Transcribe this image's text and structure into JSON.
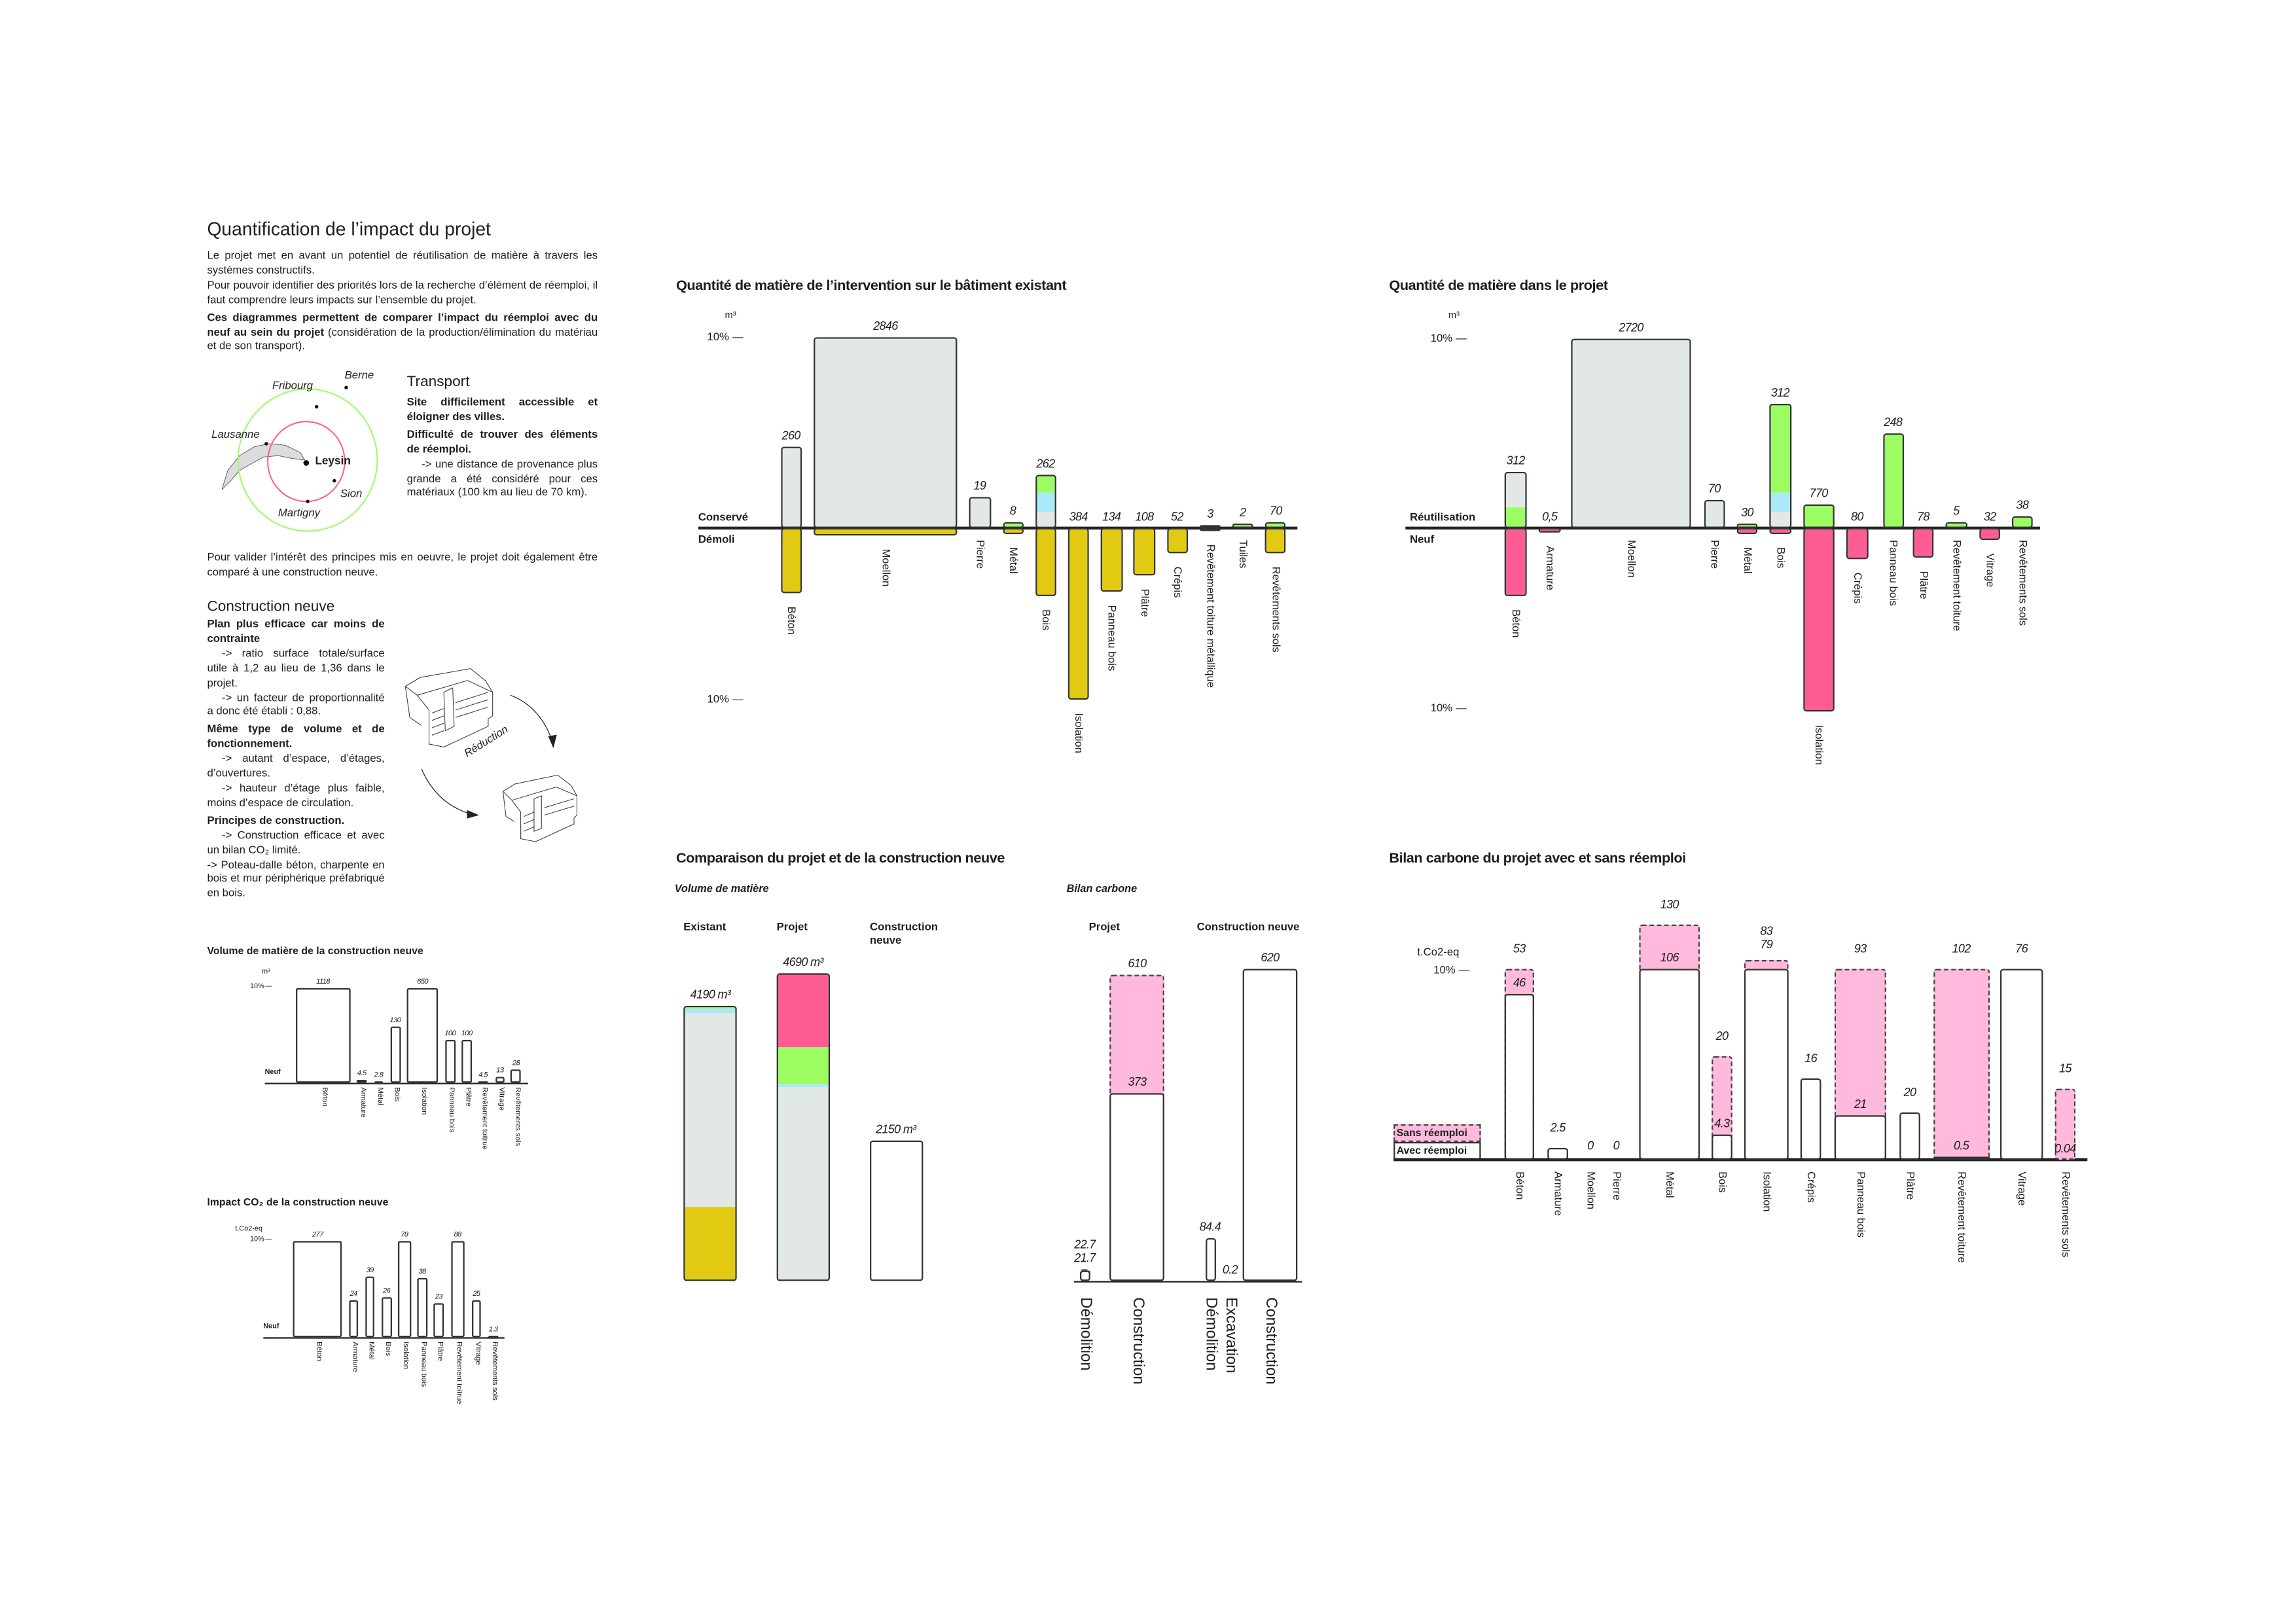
{
  "intro": {
    "title": "Quantification de l’impact du projet",
    "p1": "Le projet met en avant un potentiel de réutilisation de matière à travers les systèmes constructifs.",
    "p2": "Pour pouvoir identifier des priorités lors de la recherche d’élément de réemploi, il faut comprendre leurs impacts sur l’ensemble du projet.",
    "p3_bold": "Ces diagrammes permettent de comparer l’impact du réemploi avec du neuf au sein du projet",
    "p3_rest": " (considération de la production/élimination du matériau et de son transport)."
  },
  "map": {
    "cities": [
      "Berne",
      "Fribourg",
      "Lausanne",
      "Sion",
      "Martigny"
    ],
    "center": "Leysin"
  },
  "transport": {
    "title": "Transport",
    "b1": "Site difficilement accessible et éloigner des villes.",
    "b2": "Difficulté de trouver des éléments de réemploi.",
    "t1": "-> une distance de provenance plus grande a été considéré pour ces matériaux (100 km au lieu de 70 km)."
  },
  "validate": "Pour valider l’intérêt des principes mis en oeuvre, le projet doit également être comparé à une construction neuve.",
  "new_construction": {
    "title": "Construction neuve",
    "b1": "Plan plus efficace car moins de contrainte",
    "t1": "-> ratio surface totale/surface utile à 1,2 au lieu de 1,36 dans le projet.",
    "t2": "-> un facteur de proportionnalité a donc été établi : 0,88.",
    "b2": "Même type de volume et de fonctionnement.",
    "t3": "-> autant d’espace, d’étages, d’ouvertures.",
    "t4": "-> hauteur d’étage plus faible, moins d’espace de circulation.",
    "b3": "Principes de construction.",
    "t5": "-> Construction efficace et avec un bilan CO₂ limité.",
    "t6": "-> Poteau-dalle béton, charpente en bois et mur périphérique préfabriqué en bois.",
    "illustration_label": "Réduction"
  },
  "colors": {
    "gray": "#e1e8e6",
    "yellow": "#e2ca12",
    "green": "#9bfd62",
    "blue": "#a9e9f9",
    "pink": "#ff5c95",
    "lightpink": "#ffb9dd",
    "white": "#ffffff",
    "ring_outer": "#9bfd62",
    "ring_inner": "#ff5c95"
  },
  "chart_data": [
    {
      "type": "bar",
      "title": "Volume de matière de la construction neuve",
      "unit": "m³",
      "ytick": "10%",
      "baseline_label": "Neuf",
      "bars": [
        {
          "category": "Béton",
          "value": "1118",
          "pct": 10
        },
        {
          "category": "Armature",
          "value": "4.5",
          "pct": 0.3
        },
        {
          "category": "Métal",
          "value": "2.8",
          "pct": 0.17
        },
        {
          "category": "Bois",
          "value": "130",
          "pct": 6.0
        },
        {
          "category": "Isolation",
          "value": "650",
          "pct": 10
        },
        {
          "category": "Panneau bois",
          "value": "100",
          "pct": 4.6
        },
        {
          "category": "Plâtre",
          "value": "100",
          "pct": 4.6
        },
        {
          "category": "Revêtement toitrue",
          "value": "4.5",
          "pct": 0.27
        },
        {
          "category": "Vitrage",
          "value": "13",
          "pct": 0.64
        },
        {
          "category": "Revêtements sols",
          "value": "28",
          "pct": 1.4
        }
      ]
    },
    {
      "type": "bar",
      "title": "Impact CO₂ de la construction neuve",
      "unit": "t.Co2-eq",
      "ytick": "10%",
      "baseline_label": "Neuf",
      "bars": [
        {
          "category": "Béton",
          "value": "277",
          "pct": 10
        },
        {
          "category": "Armature",
          "value": "24",
          "pct": 3.9
        },
        {
          "category": "Métal",
          "value": "39",
          "pct": 6.4
        },
        {
          "category": "Bois",
          "value": "26",
          "pct": 4.2
        },
        {
          "category": "Isolation",
          "value": "78",
          "pct": 10
        },
        {
          "category": "Panneau bois",
          "value": "38",
          "pct": 6.2
        },
        {
          "category": "Plâtre",
          "value": "23",
          "pct": 3.6
        },
        {
          "category": "Revêtement toitrue",
          "value": "88",
          "pct": 10
        },
        {
          "category": "Vitrage",
          "value": "25",
          "pct": 3.9
        },
        {
          "category": "Revêtements sols",
          "value": "1.3",
          "pct": 0.2
        }
      ]
    },
    {
      "type": "bar",
      "title": "Quantité de matière de l’intervention sur le bâtiment existant",
      "unit": "m³",
      "ytick": "10%",
      "up_label": "Conservé",
      "down_label": "Démoli",
      "bars": [
        {
          "category": "Béton",
          "value": "260",
          "up": [
            [
              "gray",
              4.3
            ]
          ],
          "down": [
            [
              "yellow",
              3.8
            ]
          ]
        },
        {
          "category": "Moellon",
          "value": "2846",
          "up": [
            [
              "gray",
              10
            ]
          ],
          "down": [
            [
              "yellow",
              0.4
            ]
          ]
        },
        {
          "category": "Pierre",
          "value": "19",
          "up": [
            [
              "gray",
              1.6
            ]
          ],
          "down": []
        },
        {
          "category": "Métal",
          "value": "8",
          "up": [
            [
              "green",
              0.3
            ]
          ],
          "down": [
            [
              "yellow",
              0.35
            ]
          ]
        },
        {
          "category": "Bois",
          "value": "262",
          "up": [
            [
              "gray",
              0.8
            ],
            [
              "blue",
              1.0
            ],
            [
              "green",
              1.0
            ]
          ],
          "down": [
            [
              "yellow",
              4.0
            ]
          ]
        },
        {
          "category": "Isolation",
          "value": "384",
          "up": [],
          "down": [
            [
              "yellow",
              10
            ]
          ]
        },
        {
          "category": "Panneau bois",
          "value": "134",
          "up": [],
          "down": [
            [
              "yellow",
              3.7
            ]
          ]
        },
        {
          "category": "Plâtre",
          "value": "108",
          "up": [],
          "down": [
            [
              "yellow",
              2.8
            ]
          ]
        },
        {
          "category": "Crépis",
          "value": "52",
          "up": [],
          "down": [
            [
              "yellow",
              1.45
            ]
          ]
        },
        {
          "category": "Revêtement toiture métallique",
          "value": "3",
          "up": [
            [
              "green",
              0.13
            ]
          ],
          "down": [
            [
              "yellow",
              0.15
            ]
          ]
        },
        {
          "category": "Tuiles",
          "value": "2",
          "up": [
            [
              "green",
              0.23
            ]
          ],
          "down": []
        },
        {
          "category": "Revêtements sols",
          "value": "70",
          "up": [
            [
              "green",
              0.3
            ]
          ],
          "down": [
            [
              "yellow",
              1.45
            ]
          ]
        }
      ]
    },
    {
      "type": "bar",
      "title": "Quantité de matière dans le projet",
      "unit": "m³",
      "ytick": "10%",
      "up_label": "Réutilisation",
      "down_label": "Neuf",
      "bars": [
        {
          "category": "Béton",
          "value": "312",
          "up": [
            [
              "green",
              1.0
            ],
            [
              "gray",
              2.0
            ]
          ],
          "down": [
            [
              "pink",
              3.7
            ]
          ]
        },
        {
          "category": "Armature",
          "value": "0,5",
          "up": [],
          "down": [
            [
              "pink",
              0.27
            ]
          ]
        },
        {
          "category": "Moellon",
          "value": "2720",
          "up": [
            [
              "gray",
              10
            ]
          ],
          "down": []
        },
        {
          "category": "Pierre",
          "value": "70",
          "up": [
            [
              "gray",
              1.5
            ]
          ],
          "down": []
        },
        {
          "category": "Métal",
          "value": "30",
          "up": [
            [
              "green",
              0.26
            ]
          ],
          "down": [
            [
              "pink",
              0.34
            ]
          ]
        },
        {
          "category": "Bois",
          "value": "312",
          "up": [
            [
              "gray",
              0.8
            ],
            [
              "blue",
              1.0
            ],
            [
              "green",
              4.8
            ]
          ],
          "down": [
            [
              "pink",
              0.34
            ]
          ]
        },
        {
          "category": "Isolation",
          "value": "770",
          "up": [
            [
              "green",
              1.28
            ]
          ],
          "down": [
            [
              "pink",
              10
            ]
          ]
        },
        {
          "category": "Crépis",
          "value": "80",
          "up": [],
          "down": [
            [
              "pink",
              1.7
            ]
          ]
        },
        {
          "category": "Panneau bois",
          "value": "248",
          "up": [
            [
              "green",
              5.0
            ]
          ],
          "down": []
        },
        {
          "category": "Plâtre",
          "value": "78",
          "up": [],
          "down": [
            [
              "pink",
              1.6
            ]
          ]
        },
        {
          "category": "Revêtement toiture",
          "value": "5",
          "up": [
            [
              "green",
              0.28
            ]
          ],
          "down": []
        },
        {
          "category": "Vitrage",
          "value": "32",
          "up": [],
          "down": [
            [
              "pink",
              0.65
            ]
          ]
        },
        {
          "category": "Revêtements sols",
          "value": "38",
          "up": [
            [
              "green",
              0.64
            ]
          ],
          "down": []
        }
      ]
    },
    {
      "type": "bar",
      "title": "Comparaison du projet et de la construction neuve",
      "subtitle": "Volume de matière",
      "unit": "m³",
      "columns": [
        {
          "header": "Existant",
          "value": "4190 m³",
          "segments": [
            [
              "yellow",
              1105
            ],
            [
              "gray",
              2960
            ],
            [
              "blue",
              66
            ],
            [
              "green",
              60
            ]
          ]
        },
        {
          "header": "Projet",
          "value": "4690 m³",
          "segments": [
            [
              "gray",
              2929
            ],
            [
              "blue",
              44
            ],
            [
              "green",
              572
            ],
            [
              "pink",
              1145
            ]
          ]
        },
        {
          "header": "Construction neuve",
          "value": "2150 m³",
          "segments": [
            [
              "white",
              2150
            ]
          ]
        }
      ]
    },
    {
      "type": "bar",
      "subtitle": "Bilan carbone",
      "unit": "t.Co2-eq",
      "groups": [
        "Projet",
        "Construction neuve"
      ],
      "bars": [
        {
          "category": "Démolition",
          "avec": 21.7,
          "sans": 22.7,
          "labels": [
            "22.7",
            "21.7"
          ]
        },
        {
          "category": "Construction",
          "avec": 373,
          "sans": 610,
          "labels": [
            "610"
          ],
          "inner": "373"
        },
        {
          "category": "Démolition",
          "avec": 84.4,
          "sans": null,
          "labels": [
            "84.4"
          ]
        },
        {
          "category": "Excavation",
          "avec": 0.2,
          "sans": null,
          "labels": [
            "0.2"
          ]
        },
        {
          "category": "Construction",
          "avec": 620,
          "sans": null,
          "labels": [
            "620"
          ]
        }
      ]
    },
    {
      "type": "bar",
      "title": "Bilan carbone du projet avec et sans réemploi",
      "unit": "t.Co2-eq",
      "ytick": "10%",
      "legend": {
        "sans": "Sans réemploi",
        "avec": "Avec réemploi",
        "position": "left"
      },
      "bars": [
        {
          "category": "Béton",
          "top": "53",
          "inner": "46",
          "avec_pct": 8.7,
          "sans_pct": 10
        },
        {
          "category": "Armature",
          "top": "2.5",
          "inner": null,
          "avec_pct": 0.62,
          "sans_pct": null
        },
        {
          "category": "Moellon",
          "top": "0",
          "inner": null,
          "avec_pct": 0,
          "sans_pct": null
        },
        {
          "category": "Pierre",
          "top": "0",
          "inner": null,
          "avec_pct": 0,
          "sans_pct": null
        },
        {
          "category": "Métal",
          "top": "130",
          "inner": "106",
          "avec_pct": 10,
          "sans_pct": 12.3
        },
        {
          "category": "Bois",
          "top": "20",
          "inner": "4.3",
          "avec_pct": 1.3,
          "sans_pct": 5.4
        },
        {
          "category": "Isolation",
          "top": "83",
          "top2": "79",
          "inner": null,
          "avec_pct": 10,
          "sans_pct": 10.5
        },
        {
          "category": "Crépis",
          "top": "16",
          "inner": null,
          "avec_pct": 4.3,
          "sans_pct": null
        },
        {
          "category": "Panneau bois",
          "top": "93",
          "inner": "21",
          "avec_pct": 2.3,
          "sans_pct": 10
        },
        {
          "category": "Plâtre",
          "top": "20",
          "inner": null,
          "avec_pct": 2.5,
          "sans_pct": null
        },
        {
          "category": "Revêtement toiture",
          "top": "102",
          "inner": "0.5",
          "avec_pct": 0.12,
          "sans_pct": 10
        },
        {
          "category": "Vitrage",
          "top": "76",
          "inner": null,
          "avec_pct": 10,
          "sans_pct": null
        },
        {
          "category": "Revêtements sols",
          "top": "15",
          "inner": "0.04",
          "avec_pct": 0,
          "sans_pct": 3.7
        }
      ]
    }
  ]
}
